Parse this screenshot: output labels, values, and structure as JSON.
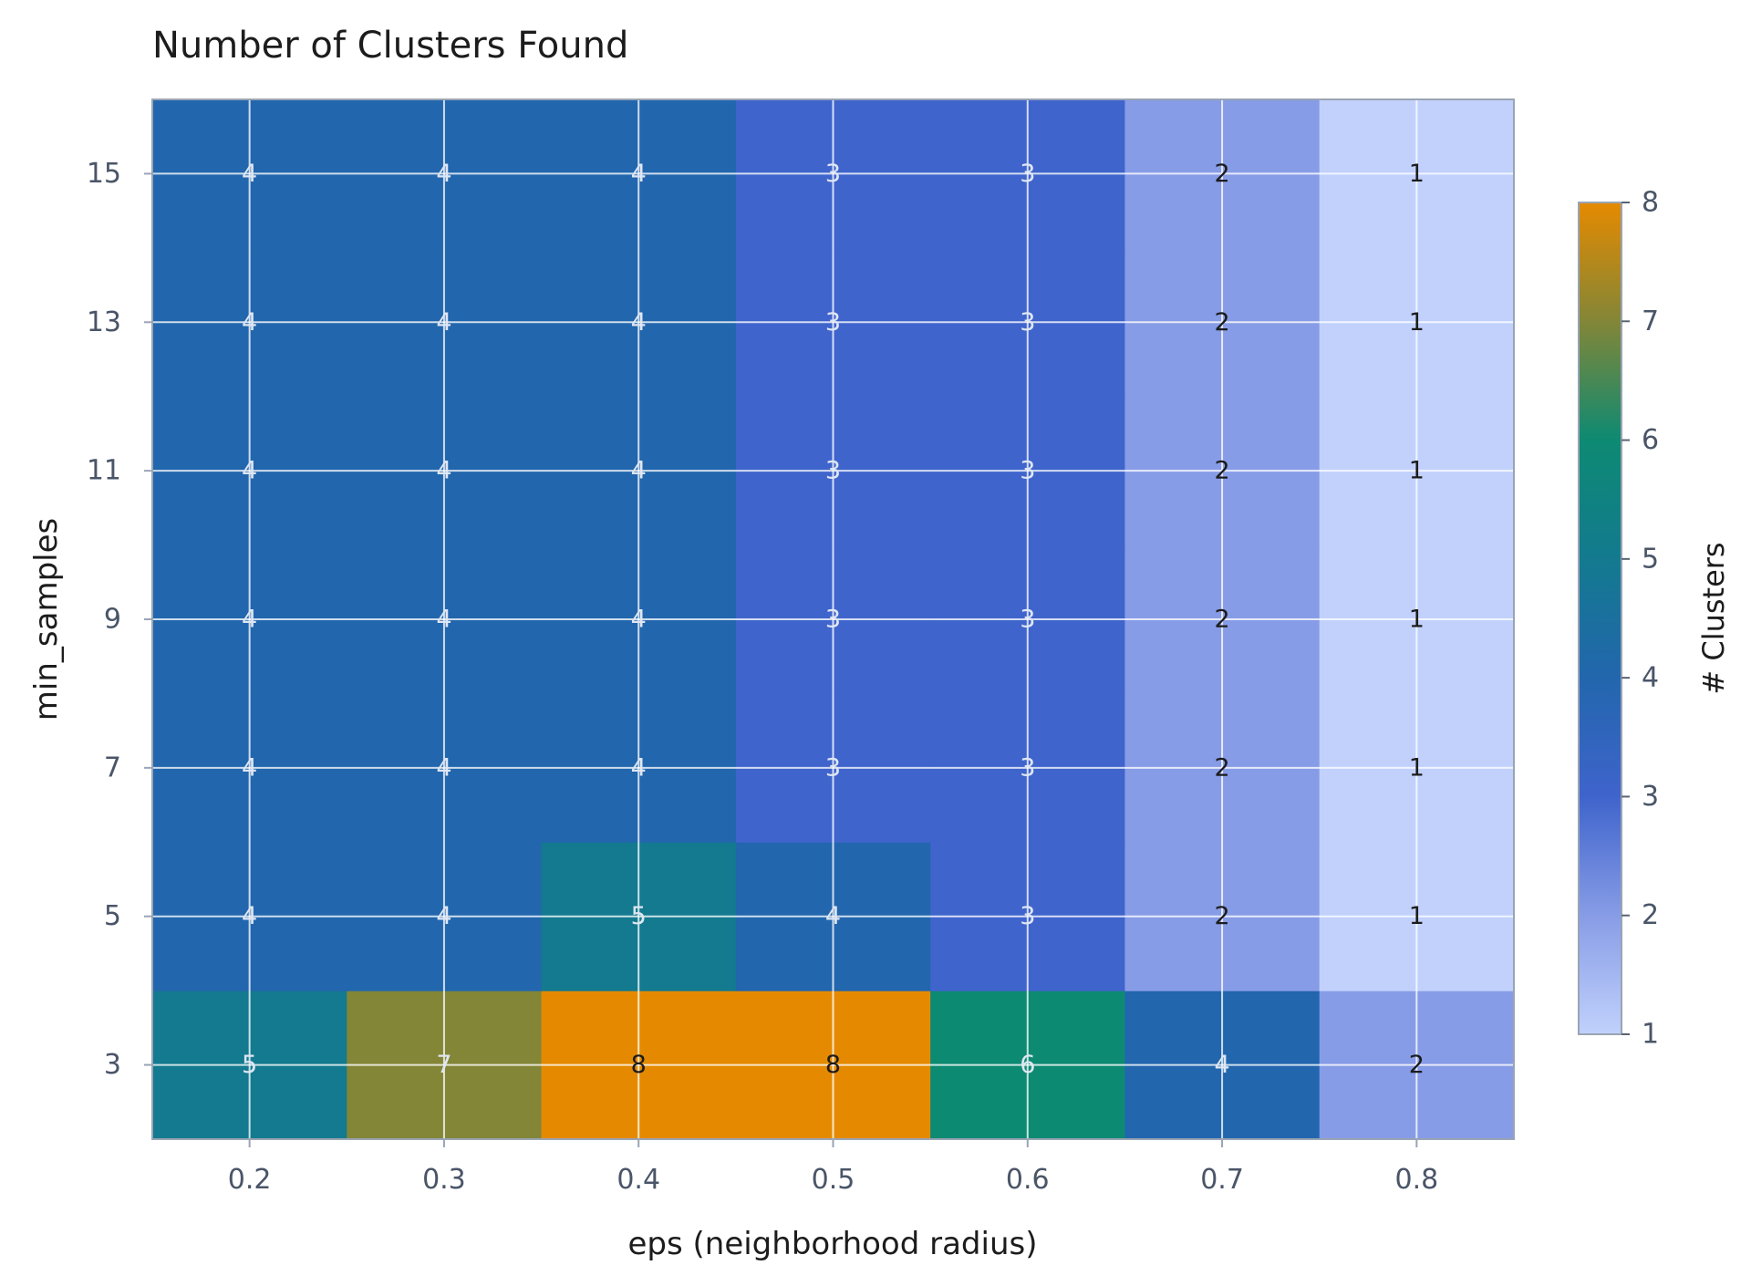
{
  "chart_data": {
    "type": "heatmap",
    "title": "Number of Clusters Found",
    "xlabel": "eps (neighborhood radius)",
    "ylabel": "min_samples",
    "x": [
      "0.2",
      "0.3",
      "0.4",
      "0.5",
      "0.6",
      "0.7",
      "0.8"
    ],
    "y": [
      "3",
      "5",
      "7",
      "9",
      "11",
      "13",
      "15"
    ],
    "values": [
      [
        5,
        7,
        8,
        8,
        6,
        4,
        2
      ],
      [
        4,
        4,
        5,
        4,
        3,
        2,
        1
      ],
      [
        4,
        4,
        4,
        3,
        3,
        2,
        1
      ],
      [
        4,
        4,
        4,
        3,
        3,
        2,
        1
      ],
      [
        4,
        4,
        4,
        3,
        3,
        2,
        1
      ],
      [
        4,
        4,
        4,
        3,
        3,
        2,
        1
      ],
      [
        4,
        4,
        4,
        3,
        3,
        2,
        1
      ]
    ],
    "colorbar": {
      "label": "# Clusters",
      "range": [
        1,
        8
      ],
      "ticks": [
        "1",
        "2",
        "3",
        "4",
        "5",
        "6",
        "7",
        "8"
      ],
      "colors": [
        "#c1d1fc",
        "#879ce6",
        "#3f64cc",
        "#2266ad",
        "#137a8f",
        "#0d8a72",
        "#838637",
        "#e58a00"
      ]
    },
    "grid": true
  }
}
